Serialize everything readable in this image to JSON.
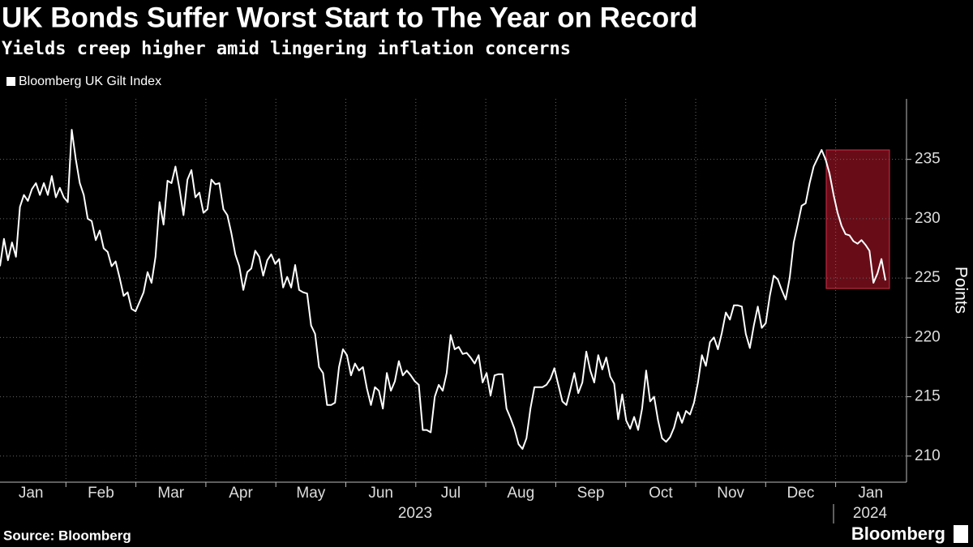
{
  "chart_data": {
    "type": "line",
    "title": "UK Bonds Suffer Worst Start to The Year on Record",
    "subtitle": "Yields creep higher amid lingering inflation concerns",
    "y_axis_label": "Points",
    "source": "Source: Bloomberg",
    "brand": "Bloomberg",
    "months": [
      "Jan",
      "Feb",
      "Mar",
      "Apr",
      "May",
      "Jun",
      "Jul",
      "Aug",
      "Sep",
      "Oct",
      "Nov",
      "Dec",
      "Jan"
    ],
    "years": [
      "2023",
      "2024"
    ],
    "ylim": [
      207.8,
      240.1
    ],
    "yticks": [
      210,
      215,
      220,
      225,
      230,
      235
    ],
    "grid": true,
    "series": [
      {
        "name": "Bloomberg UK Gilt Index",
        "color": "#ffffff",
        "values": [
          226,
          228.3,
          226.5,
          228,
          226.8,
          231,
          232,
          231.5,
          232.5,
          233,
          232,
          233,
          232,
          233.6,
          231.8,
          232.6,
          231.8,
          231.4,
          237.5,
          235,
          233,
          232,
          230,
          229.8,
          228.2,
          229,
          227.5,
          227.2,
          226,
          226.4,
          225,
          223.5,
          223.8,
          222.4,
          222.2,
          223,
          223.8,
          225.5,
          224.6,
          226.8,
          231.4,
          229.5,
          233.2,
          233,
          234.4,
          232.5,
          230.3,
          233.3,
          234.1,
          231.8,
          232.2,
          230.5,
          230.8,
          233.3,
          232.9,
          233,
          230.8,
          230.3,
          228.8,
          227,
          226,
          224,
          225.5,
          225.8,
          227.3,
          226.8,
          225.2,
          226.5,
          227,
          226.2,
          226.6,
          224.2,
          225.1,
          224.2,
          226.1,
          224,
          223.8,
          223.7,
          221,
          220.3,
          217.5,
          217,
          214.3,
          214.3,
          214.5,
          217.5,
          219,
          218.5,
          216.8,
          217.8,
          217.2,
          217.5,
          215.7,
          214.3,
          215.8,
          215.5,
          214,
          217,
          215.5,
          216.3,
          218,
          216.8,
          217.2,
          216.8,
          216.3,
          216,
          212.2,
          212.2,
          212,
          215,
          216,
          215.5,
          217,
          220.2,
          219,
          219.2,
          218.6,
          218.7,
          218.3,
          217.8,
          218.5,
          216.2,
          217,
          215.1,
          216.8,
          216.9,
          216.9,
          214,
          213.2,
          212.3,
          211,
          210.6,
          211.5,
          214,
          215.8,
          215.8,
          215.8,
          216,
          216.5,
          217.4,
          216,
          214.6,
          214.3,
          215.6,
          217,
          215.3,
          216.2,
          218.8,
          217.2,
          216.2,
          218.5,
          217.3,
          218.3,
          216.7,
          216.1,
          213.1,
          215.2,
          213,
          212.3,
          213.3,
          212.2,
          214,
          217.2,
          214.6,
          215,
          213,
          211.5,
          211.2,
          211.6,
          212.4,
          213.7,
          212.8,
          213.8,
          213.5,
          214.5,
          216.2,
          218.5,
          217.6,
          219.6,
          220,
          219,
          220.4,
          222.1,
          221.5,
          222.7,
          222.7,
          222.6,
          220.3,
          219.1,
          221,
          222.6,
          220.8,
          221.2,
          223.5,
          225.2,
          224.9,
          224,
          223.2,
          225,
          228,
          229.5,
          231.1,
          231.3,
          233,
          234.4,
          235.1,
          235.8,
          235,
          233.8,
          232,
          230.5,
          229.4,
          228.7,
          228.6,
          228.1,
          227.9,
          228.2,
          227.8,
          227.3,
          224.6,
          225.4,
          226.6,
          224.8
        ]
      }
    ]
  }
}
